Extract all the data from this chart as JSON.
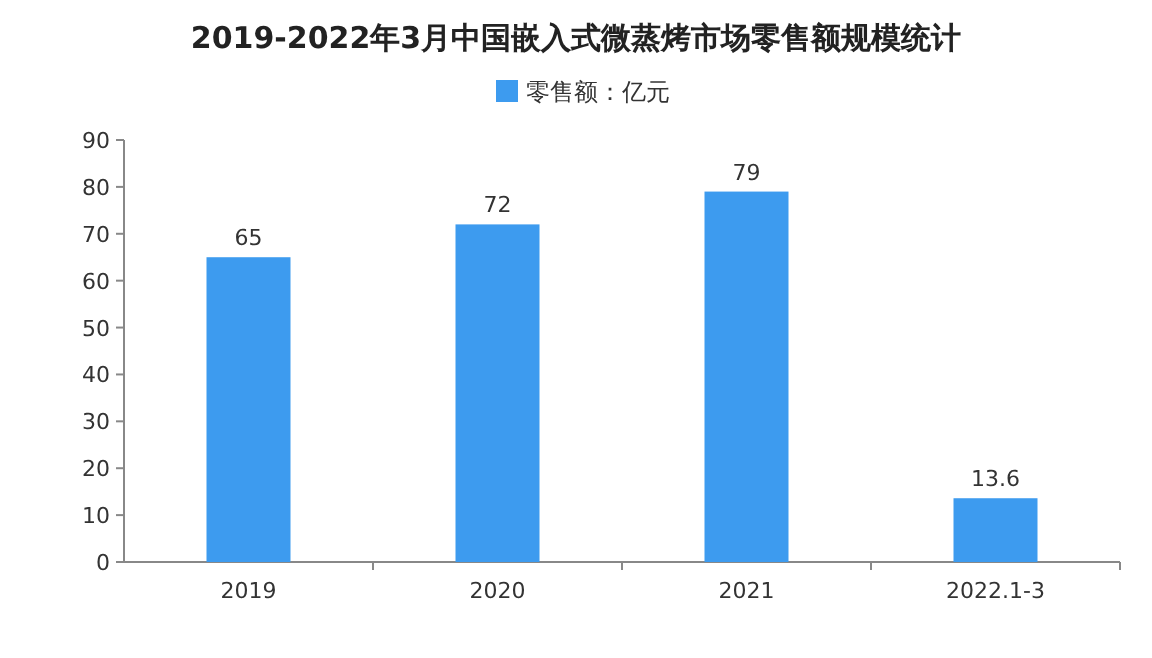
{
  "chart_data": {
    "type": "bar",
    "title": "2019-2022年3月中国嵌入式微蒸烤市场零售额规模统计",
    "categories": [
      "2019",
      "2020",
      "2021",
      "2022.1-3"
    ],
    "series": [
      {
        "name": "零售额：亿元",
        "color": "#3d9bef",
        "values": [
          65,
          72,
          79,
          13.6
        ]
      }
    ],
    "ylim": [
      0,
      90
    ],
    "yticks": [
      0,
      10,
      20,
      30,
      40,
      50,
      60,
      70,
      80,
      90
    ],
    "data_labels": true,
    "legend": "top"
  }
}
